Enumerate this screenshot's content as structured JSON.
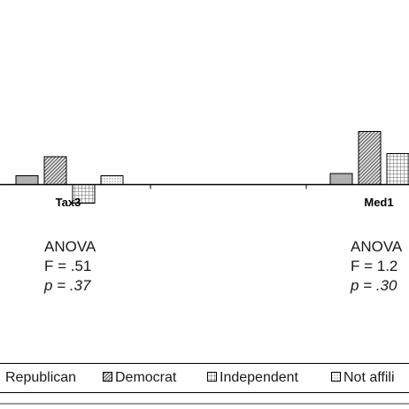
{
  "chart_data": {
    "type": "bar",
    "categories": [
      "Tax3",
      "Med1"
    ],
    "series": [
      {
        "name": "Republican",
        "values": [
          0.2,
          0.25
        ],
        "fill": "#b0b0b0"
      },
      {
        "name": "Democrat",
        "values": [
          0.63,
          1.2
        ],
        "fill": "pattern-diagonal"
      },
      {
        "name": "Independent",
        "values": [
          -0.42,
          0.7
        ],
        "fill": "pattern-grid"
      },
      {
        "name": "Not affiliated",
        "values": [
          0.2,
          null
        ],
        "fill": "pattern-dots"
      }
    ],
    "grid": false,
    "legend_position": "bottom",
    "annotations": [
      {
        "category": "Tax3",
        "lines": [
          "ANOVA",
          "F = .51",
          "p = .37"
        ]
      },
      {
        "category": "Med1",
        "lines": [
          "ANOVA",
          "F = 1.2",
          "p = .30"
        ]
      }
    ]
  },
  "legend": {
    "items": [
      "Republican",
      "Democrat",
      "Independent",
      "Not affili"
    ]
  },
  "colors": {
    "axis": "#000000",
    "republican": "#b0b0b0",
    "pattern_stroke": "#444444"
  }
}
